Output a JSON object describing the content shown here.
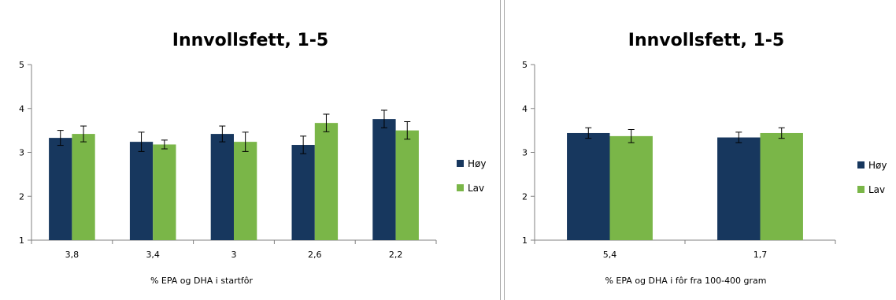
{
  "chart_data": [
    {
      "type": "bar",
      "title": "Innvollsfett, 1-5",
      "xlabel": "% EPA og DHA i startfôr",
      "ylabel": "",
      "ylim": [
        1,
        5
      ],
      "yticks": [
        "1",
        "2",
        "3",
        "4",
        "5"
      ],
      "categories": [
        "3,8",
        "3,4",
        "3",
        "2,6",
        "2,2"
      ],
      "grid": false,
      "legend_position": "right",
      "series": [
        {
          "name": "Høy",
          "color": "#17375e",
          "values": [
            3.33,
            3.24,
            3.42,
            3.17,
            3.76
          ],
          "errors": [
            0.17,
            0.22,
            0.18,
            0.2,
            0.2
          ]
        },
        {
          "name": "Lav",
          "color": "#7ab648",
          "values": [
            3.42,
            3.18,
            3.24,
            3.67,
            3.5
          ],
          "errors": [
            0.18,
            0.1,
            0.22,
            0.2,
            0.2
          ]
        }
      ]
    },
    {
      "type": "bar",
      "title": "Innvollsfett, 1-5",
      "xlabel": "% EPA og DHA i fôr fra 100-400 gram",
      "ylabel": "",
      "ylim": [
        1,
        5
      ],
      "yticks": [
        "1",
        "2",
        "3",
        "4",
        "5"
      ],
      "categories": [
        "5,4",
        "1,7"
      ],
      "grid": false,
      "legend_position": "right",
      "series": [
        {
          "name": "Høy",
          "color": "#17375e",
          "values": [
            3.44,
            3.34
          ],
          "errors": [
            0.12,
            0.12
          ]
        },
        {
          "name": "Lav",
          "color": "#7ab648",
          "values": [
            3.37,
            3.44
          ],
          "errors": [
            0.15,
            0.12
          ]
        }
      ]
    }
  ]
}
